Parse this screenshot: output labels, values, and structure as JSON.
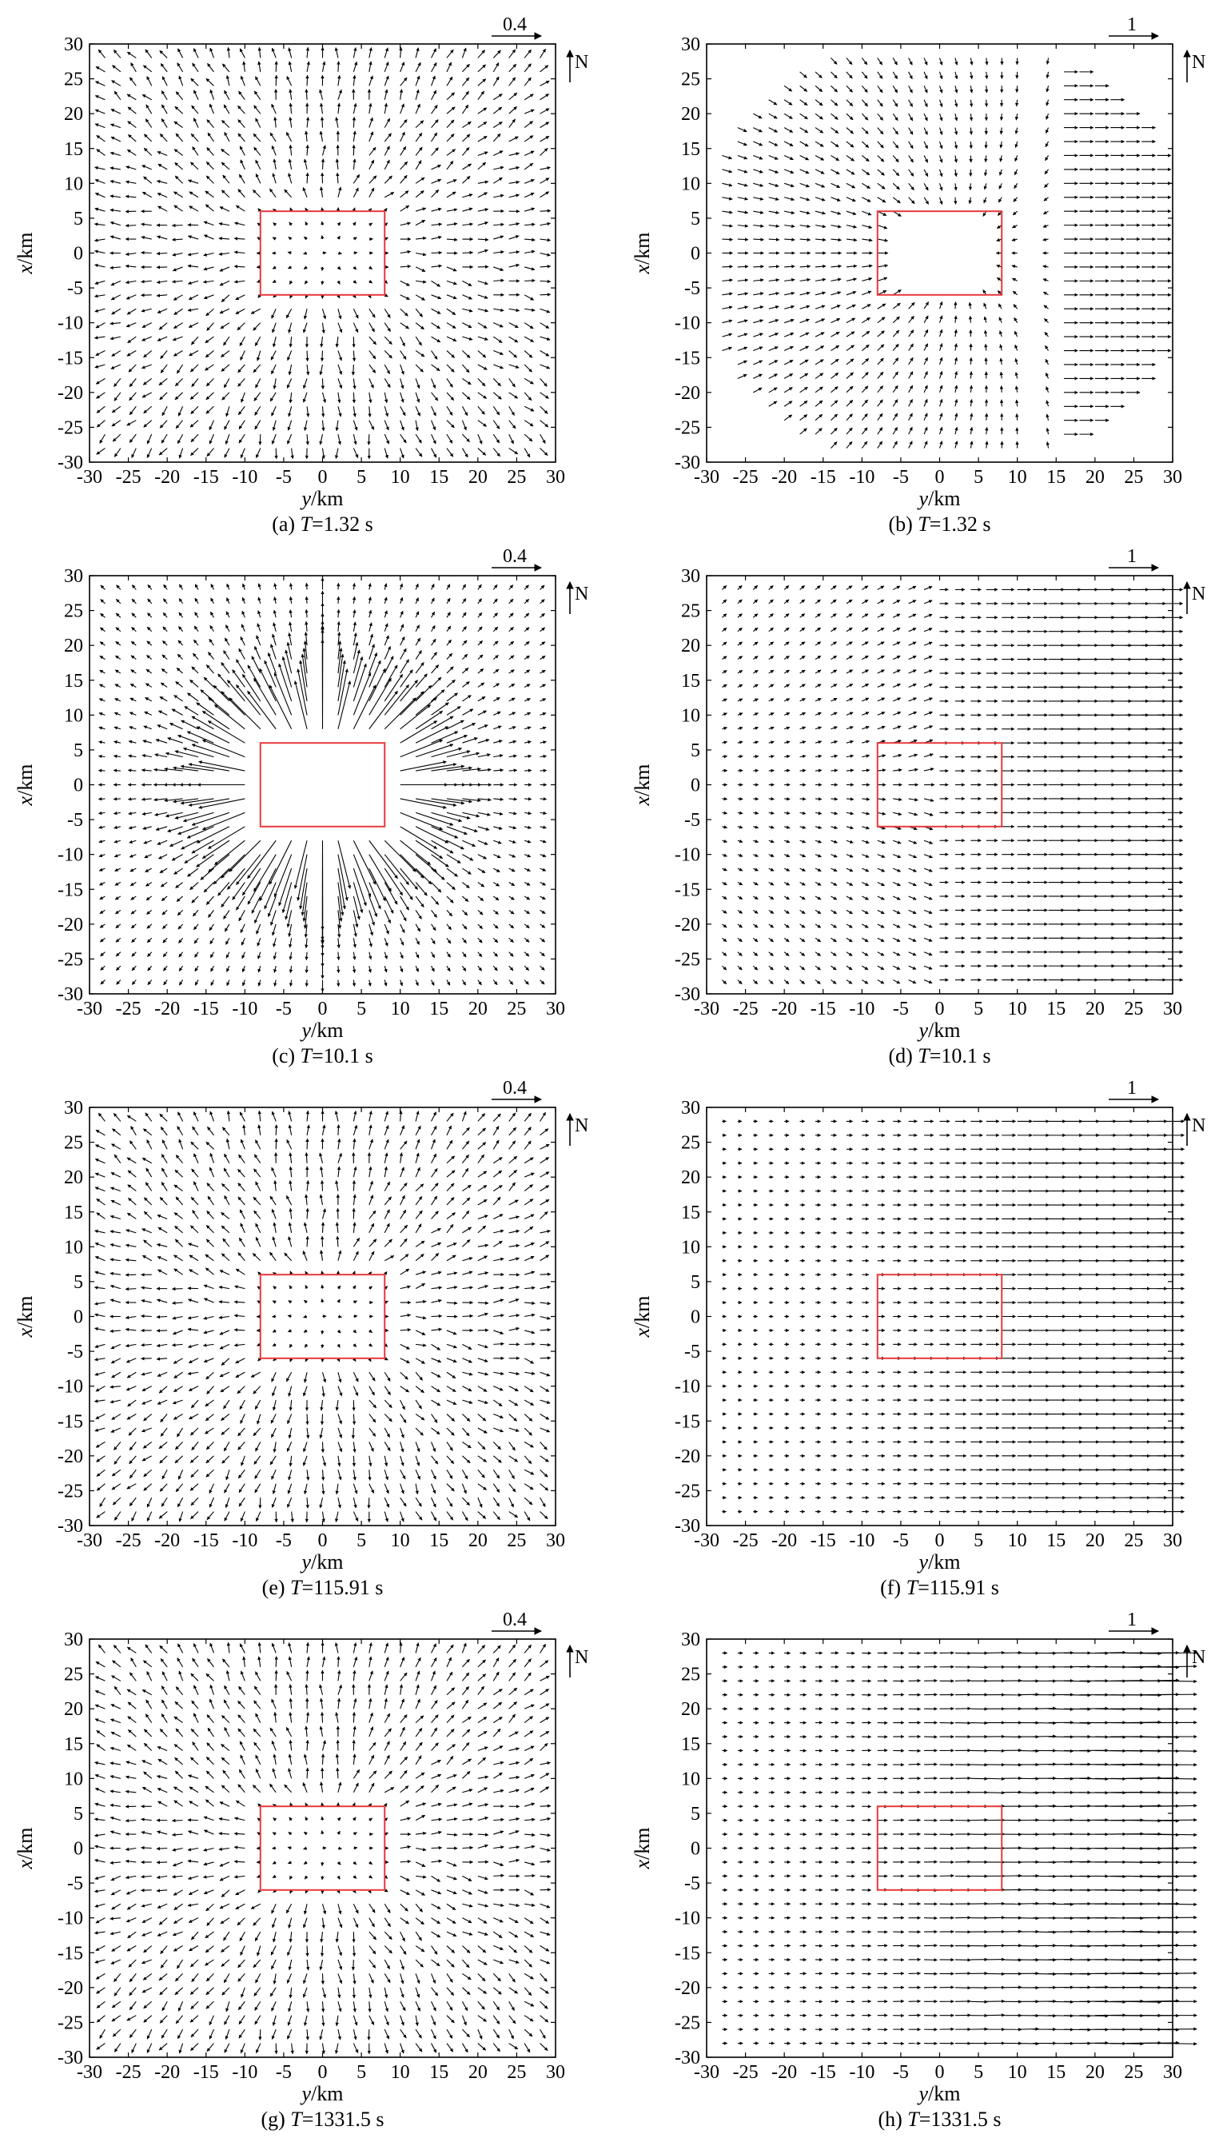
{
  "figure": {
    "north_label": "N",
    "box_color": "#e8383b",
    "arrow_color": "#000000"
  },
  "chart_data": [
    {
      "type": "quiver",
      "caption_prefix": "(a) ",
      "caption_var": "T",
      "caption_suffix": "=1.32 s",
      "xlabel_var": "y",
      "xlabel_unit": "/km",
      "ylabel_var": "x",
      "ylabel_unit": "/km",
      "xlim": [
        -30,
        30
      ],
      "ylim": [
        -30,
        30
      ],
      "xticks": [
        -30,
        -25,
        -20,
        -15,
        -10,
        -5,
        0,
        5,
        10,
        15,
        20,
        25,
        30
      ],
      "yticks": [
        -30,
        -25,
        -20,
        -15,
        -10,
        -5,
        0,
        5,
        10,
        15,
        20,
        25,
        30
      ],
      "reference_vector_label": "0.4",
      "reference_vector_value": 0.4,
      "source_box": {
        "y": [
          -8,
          8
        ],
        "x": [
          -6,
          6
        ]
      },
      "field": {
        "pattern": "radial-weak",
        "grid_start": -28,
        "grid_step": 2,
        "approx_max_magnitude": 0.1
      }
    },
    {
      "type": "quiver",
      "caption_prefix": "(b) ",
      "caption_var": "T",
      "caption_suffix": "=1.32 s",
      "xlabel_var": "y",
      "xlabel_unit": "/km",
      "ylabel_var": "x",
      "ylabel_unit": "/km",
      "xlim": [
        -30,
        30
      ],
      "ylim": [
        -30,
        30
      ],
      "xticks": [
        -30,
        -25,
        -20,
        -15,
        -10,
        -5,
        0,
        5,
        10,
        15,
        20,
        25,
        30
      ],
      "yticks": [
        -30,
        -25,
        -20,
        -15,
        -10,
        -5,
        0,
        5,
        10,
        15,
        20,
        25,
        30
      ],
      "reference_vector_label": "1",
      "reference_vector_value": 1,
      "source_box": {
        "y": [
          -8,
          8
        ],
        "x": [
          -6,
          6
        ]
      },
      "field": {
        "pattern": "wavefront",
        "grid_start": -28,
        "grid_step": 2,
        "approx_max_magnitude": 0.4
      }
    },
    {
      "type": "quiver",
      "caption_prefix": "(c) ",
      "caption_var": "T",
      "caption_suffix": "=10.1 s",
      "xlabel_var": "y",
      "xlabel_unit": "/km",
      "ylabel_var": "x",
      "ylabel_unit": "/km",
      "xlim": [
        -30,
        30
      ],
      "ylim": [
        -30,
        30
      ],
      "xticks": [
        -30,
        -25,
        -20,
        -15,
        -10,
        -5,
        0,
        5,
        10,
        15,
        20,
        25,
        30
      ],
      "yticks": [
        -30,
        -25,
        -20,
        -15,
        -10,
        -5,
        0,
        5,
        10,
        15,
        20,
        25,
        30
      ],
      "reference_vector_label": "0.4",
      "reference_vector_value": 0.4,
      "source_box": {
        "y": [
          -8,
          8
        ],
        "x": [
          -6,
          6
        ]
      },
      "field": {
        "pattern": "radial-strong",
        "grid_start": -28,
        "grid_step": 2,
        "approx_max_magnitude": 0.3
      }
    },
    {
      "type": "quiver",
      "caption_prefix": "(d) ",
      "caption_var": "T",
      "caption_suffix": "=10.1 s",
      "xlabel_var": "y",
      "xlabel_unit": "/km",
      "ylabel_var": "x",
      "ylabel_unit": "/km",
      "xlim": [
        -30,
        30
      ],
      "ylim": [
        -30,
        30
      ],
      "xticks": [
        -30,
        -25,
        -20,
        -15,
        -10,
        -5,
        0,
        5,
        10,
        15,
        20,
        25,
        30
      ],
      "yticks": [
        -30,
        -25,
        -20,
        -15,
        -10,
        -5,
        0,
        5,
        10,
        15,
        20,
        25,
        30
      ],
      "reference_vector_label": "1",
      "reference_vector_value": 1,
      "source_box": {
        "y": [
          -8,
          8
        ],
        "x": [
          -6,
          6
        ]
      },
      "field": {
        "pattern": "eastward-radial",
        "grid_start": -28,
        "grid_step": 2,
        "approx_max_magnitude": 0.6
      }
    },
    {
      "type": "quiver",
      "caption_prefix": "(e) ",
      "caption_var": "T",
      "caption_suffix": "=115.91 s",
      "xlabel_var": "y",
      "xlabel_unit": "/km",
      "ylabel_var": "x",
      "ylabel_unit": "/km",
      "xlim": [
        -30,
        30
      ],
      "ylim": [
        -30,
        30
      ],
      "xticks": [
        -30,
        -25,
        -20,
        -15,
        -10,
        -5,
        0,
        5,
        10,
        15,
        20,
        25,
        30
      ],
      "yticks": [
        -30,
        -25,
        -20,
        -15,
        -10,
        -5,
        0,
        5,
        10,
        15,
        20,
        25,
        30
      ],
      "reference_vector_label": "0.4",
      "reference_vector_value": 0.4,
      "source_box": {
        "y": [
          -8,
          8
        ],
        "x": [
          -6,
          6
        ]
      },
      "field": {
        "pattern": "radial-weak",
        "grid_start": -28,
        "grid_step": 2,
        "approx_max_magnitude": 0.1
      }
    },
    {
      "type": "quiver",
      "caption_prefix": "(f) ",
      "caption_var": "T",
      "caption_suffix": "=115.91 s",
      "xlabel_var": "y",
      "xlabel_unit": "/km",
      "ylabel_var": "x",
      "ylabel_unit": "/km",
      "xlim": [
        -30,
        30
      ],
      "ylim": [
        -30,
        30
      ],
      "xticks": [
        -30,
        -25,
        -20,
        -15,
        -10,
        -5,
        0,
        5,
        10,
        15,
        20,
        25,
        30
      ],
      "yticks": [
        -30,
        -25,
        -20,
        -15,
        -10,
        -5,
        0,
        5,
        10,
        15,
        20,
        25,
        30
      ],
      "reference_vector_label": "1",
      "reference_vector_value": 1,
      "source_box": {
        "y": [
          -8,
          8
        ],
        "x": [
          -6,
          6
        ]
      },
      "field": {
        "pattern": "eastward",
        "grid_start": -28,
        "grid_step": 2,
        "approx_max_magnitude": 0.55
      }
    },
    {
      "type": "quiver",
      "caption_prefix": "(g) ",
      "caption_var": "T",
      "caption_suffix": "=1331.5 s",
      "xlabel_var": "y",
      "xlabel_unit": "/km",
      "ylabel_var": "x",
      "ylabel_unit": "/km",
      "xlim": [
        -30,
        30
      ],
      "ylim": [
        -30,
        30
      ],
      "xticks": [
        -30,
        -25,
        -20,
        -15,
        -10,
        -5,
        0,
        5,
        10,
        15,
        20,
        25,
        30
      ],
      "yticks": [
        -30,
        -25,
        -20,
        -15,
        -10,
        -5,
        0,
        5,
        10,
        15,
        20,
        25,
        30
      ],
      "reference_vector_label": "0.4",
      "reference_vector_value": 0.4,
      "source_box": {
        "y": [
          -8,
          8
        ],
        "x": [
          -6,
          6
        ]
      },
      "field": {
        "pattern": "radial-weak",
        "grid_start": -28,
        "grid_step": 2,
        "approx_max_magnitude": 0.1
      }
    },
    {
      "type": "quiver",
      "caption_prefix": "(h) ",
      "caption_var": "T",
      "caption_suffix": "=1331.5 s",
      "xlabel_var": "y",
      "xlabel_unit": "/km",
      "ylabel_var": "x",
      "ylabel_unit": "/km",
      "xlim": [
        -30,
        30
      ],
      "ylim": [
        -30,
        30
      ],
      "xticks": [
        -30,
        -25,
        -20,
        -15,
        -10,
        -5,
        0,
        5,
        10,
        15,
        20,
        25,
        30
      ],
      "yticks": [
        -30,
        -25,
        -20,
        -15,
        -10,
        -5,
        0,
        5,
        10,
        15,
        20,
        25,
        30
      ],
      "reference_vector_label": "1",
      "reference_vector_value": 1,
      "source_box": {
        "y": [
          -8,
          8
        ],
        "x": [
          -6,
          6
        ]
      },
      "field": {
        "pattern": "eastward-strong",
        "grid_start": -28,
        "grid_step": 2,
        "approx_max_magnitude": 0.8
      }
    }
  ]
}
